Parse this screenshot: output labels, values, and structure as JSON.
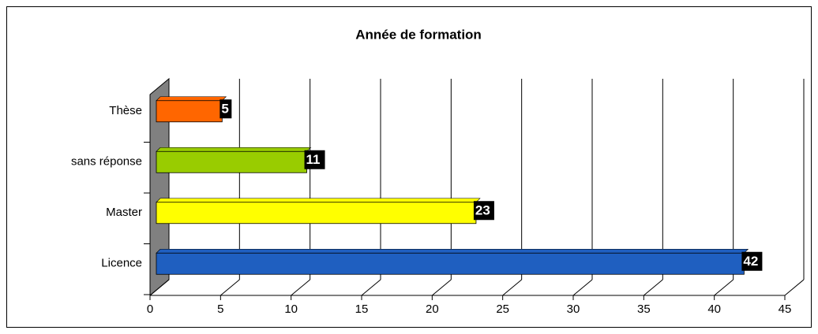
{
  "chart_data": {
    "type": "bar",
    "orientation": "horizontal",
    "title": "Année de formation",
    "categories": [
      "Licence",
      "Master",
      "sans réponse",
      "Thèse"
    ],
    "values": [
      42,
      23,
      11,
      5
    ],
    "colors": [
      "#1f5fc0",
      "#ffff00",
      "#99cc00",
      "#ff6600"
    ],
    "xlim": [
      0,
      45
    ],
    "xticks": [
      0,
      5,
      10,
      15,
      20,
      25,
      30,
      35,
      40,
      45
    ],
    "grid": true
  }
}
